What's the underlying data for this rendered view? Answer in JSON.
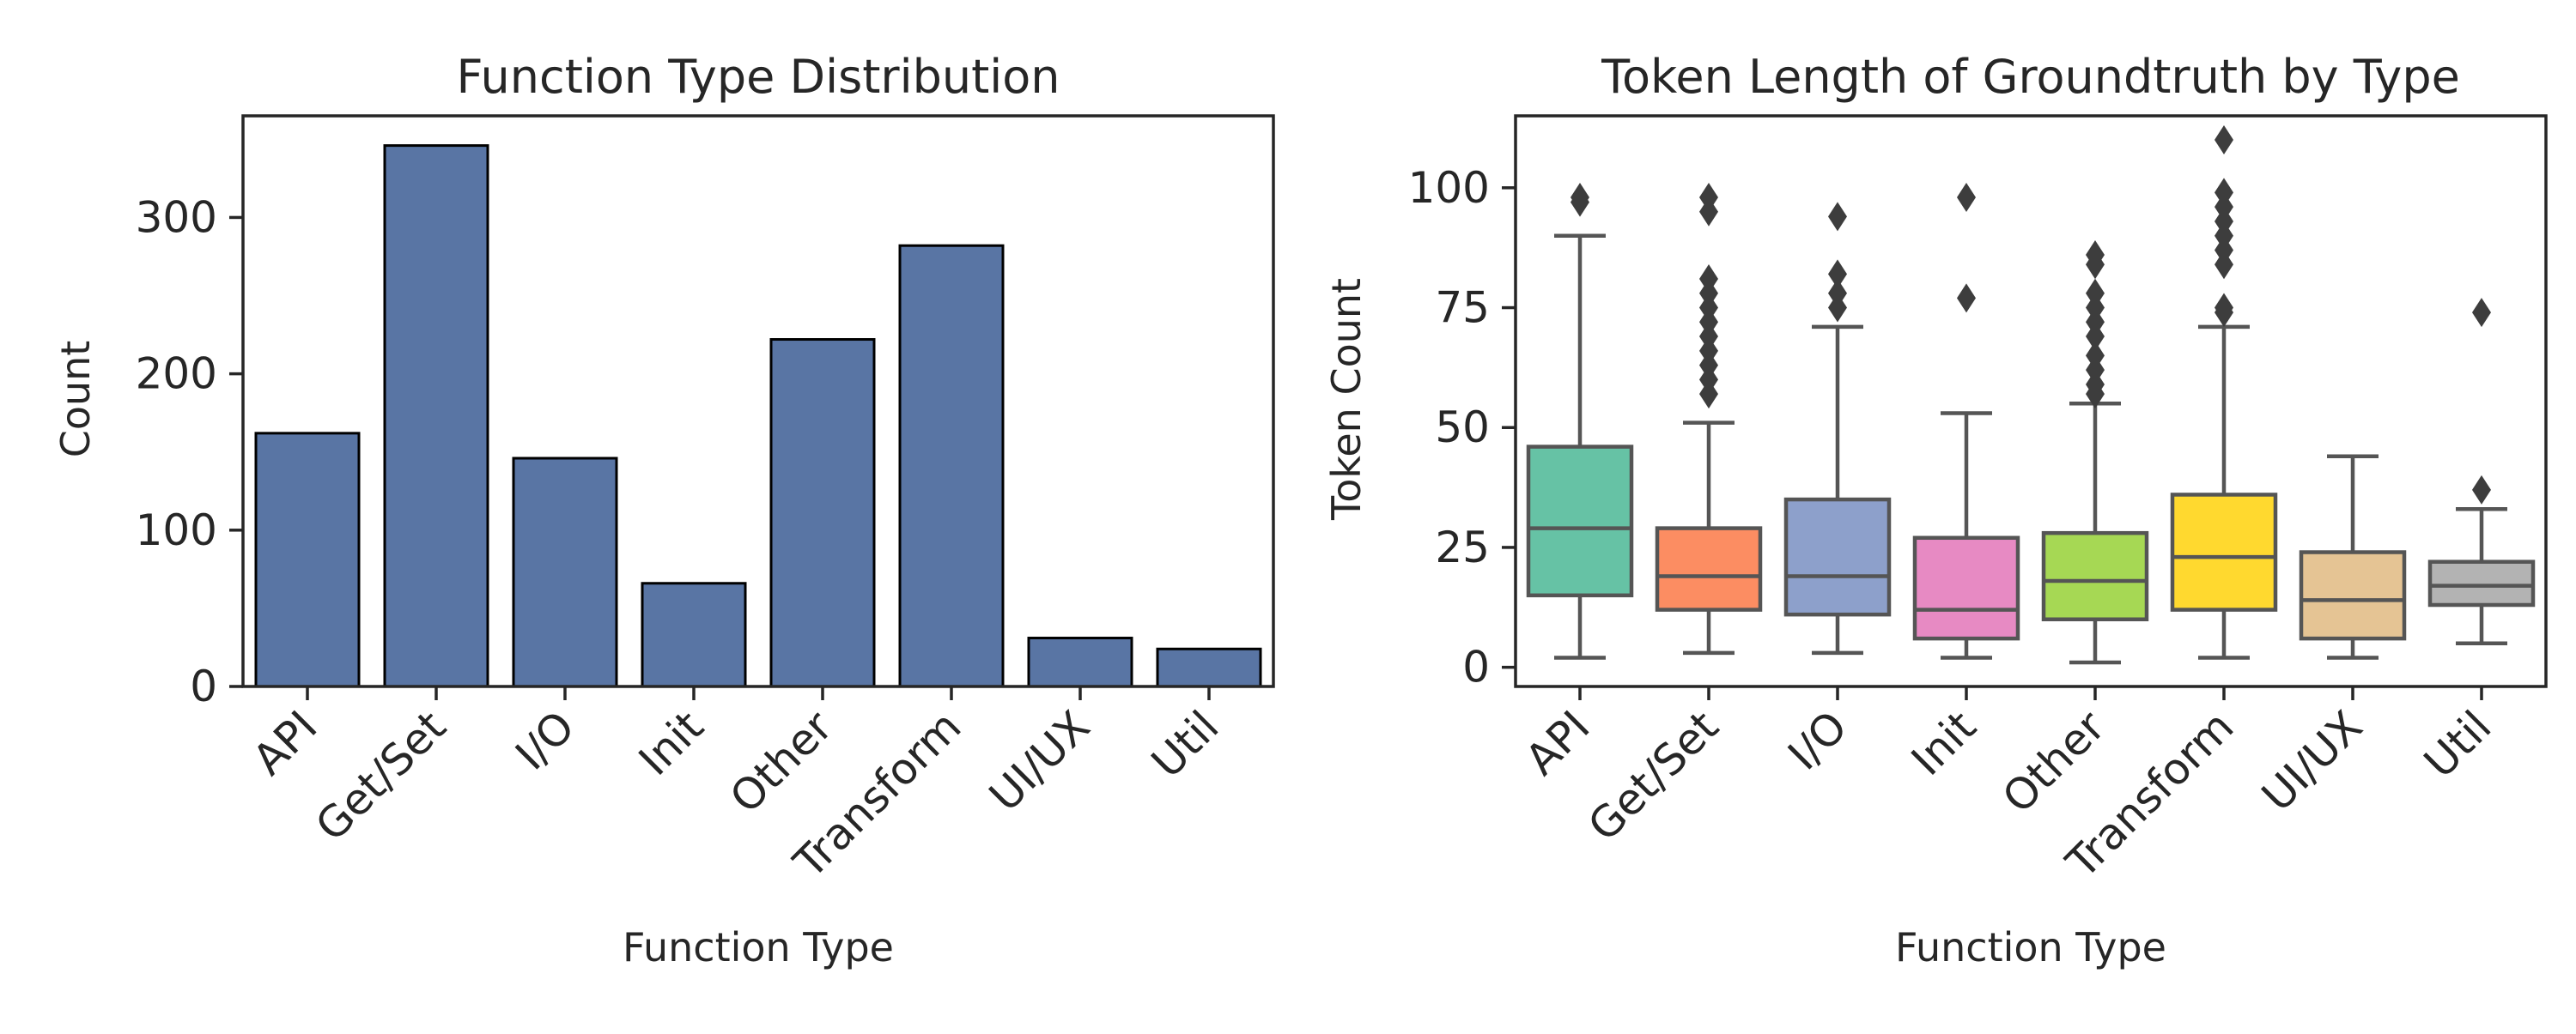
{
  "chart_data": [
    {
      "type": "bar",
      "title": "Function Type Distribution",
      "xlabel": "Function Type",
      "ylabel": "Count",
      "categories": [
        "API",
        "Get/Set",
        "I/O",
        "Init",
        "Other",
        "Transform",
        "UI/UX",
        "Util"
      ],
      "values": [
        162,
        346,
        146,
        66,
        222,
        282,
        31,
        24
      ],
      "ylim": [
        0,
        365
      ],
      "yticks": [
        0,
        100,
        200,
        300
      ],
      "bar_color": "#5975a4",
      "grid": false
    },
    {
      "type": "box",
      "title": "Token Length of Groundtruth by Type",
      "xlabel": "Function Type",
      "ylabel": "Token Count",
      "categories": [
        "API",
        "Get/Set",
        "I/O",
        "Init",
        "Other",
        "Transform",
        "UI/UX",
        "Util"
      ],
      "ylim": [
        -4,
        115
      ],
      "yticks": [
        0,
        25,
        50,
        75,
        100
      ],
      "grid": false,
      "series": [
        {
          "category": "API",
          "color": "#66c2a5",
          "whisker_low": 2,
          "q1": 15,
          "median": 29,
          "q3": 46,
          "whisker_high": 90,
          "outliers": [
            97,
            98
          ]
        },
        {
          "category": "Get/Set",
          "color": "#fc8d62",
          "whisker_low": 3,
          "q1": 12,
          "median": 19,
          "q3": 29,
          "whisker_high": 51,
          "outliers": [
            57,
            60,
            63,
            66,
            69,
            72,
            75,
            78,
            81,
            95,
            98
          ]
        },
        {
          "category": "I/O",
          "color": "#8da0cb",
          "whisker_low": 3,
          "q1": 11,
          "median": 19,
          "q3": 35,
          "whisker_high": 71,
          "outliers": [
            75,
            78,
            82,
            94
          ]
        },
        {
          "category": "Init",
          "color": "#e78ac3",
          "whisker_low": 2,
          "q1": 6,
          "median": 12,
          "q3": 27,
          "whisker_high": 53,
          "outliers": [
            77,
            98
          ]
        },
        {
          "category": "Other",
          "color": "#a6d854",
          "whisker_low": 1,
          "q1": 10,
          "median": 18,
          "q3": 28,
          "whisker_high": 55,
          "outliers": [
            57,
            59,
            62,
            65,
            69,
            72,
            75,
            78,
            84,
            86
          ]
        },
        {
          "category": "Transform",
          "color": "#ffd92f",
          "whisker_low": 2,
          "q1": 12,
          "median": 23,
          "q3": 36,
          "whisker_high": 71,
          "outliers": [
            74,
            75,
            84,
            87,
            90,
            93,
            96,
            99,
            110
          ]
        },
        {
          "category": "UI/UX",
          "color": "#e5c494",
          "whisker_low": 2,
          "q1": 6,
          "median": 14,
          "q3": 24,
          "whisker_high": 44,
          "outliers": []
        },
        {
          "category": "Util",
          "color": "#b3b3b3",
          "whisker_low": 5,
          "q1": 13,
          "median": 17,
          "q3": 22,
          "whisker_high": 33,
          "outliers": [
            37,
            74
          ]
        }
      ]
    }
  ]
}
